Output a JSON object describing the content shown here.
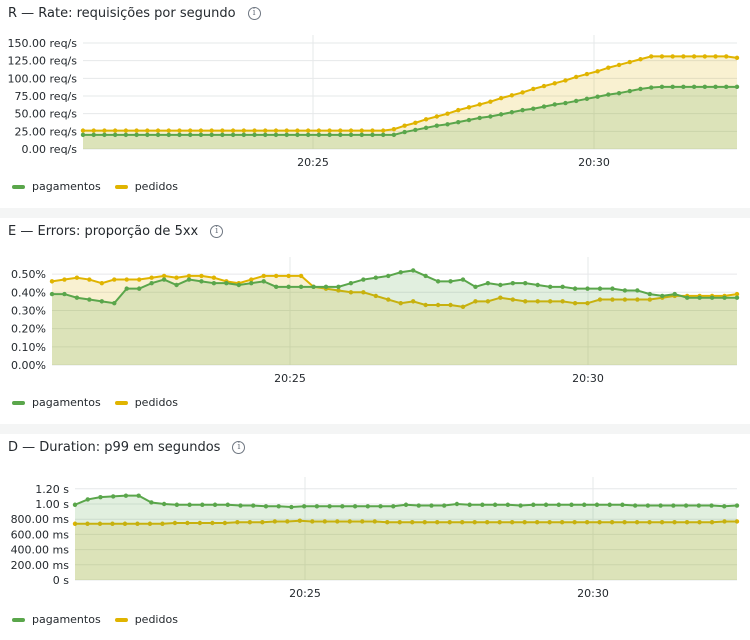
{
  "colors": {
    "pagamentos": "#5aa64b",
    "pedidos": "#e0b400"
  },
  "panels": [
    {
      "title": "R — Rate: requisições por segundo",
      "info_icon": "info-icon"
    },
    {
      "title": "E — Errors: proporção de 5xx",
      "info_icon": "info-icon"
    },
    {
      "title": "D — Duration: p99 em segundos",
      "info_icon": "info-icon"
    }
  ],
  "chart_data": [
    {
      "type": "line",
      "title": "R — Rate: requisições por segundo",
      "x_ticks": [
        "20:25",
        "20:30"
      ],
      "y_ticks": [
        "0.00 req/s",
        "25.00 req/s",
        "50.00 req/s",
        "75.00 req/s",
        "100.00 req/s",
        "125.00 req/s",
        "150.00 req/s"
      ],
      "ylim": [
        0,
        150
      ],
      "fill": "area",
      "legend": "bottom-left",
      "series": [
        {
          "name": "pagamentos",
          "values": [
            20,
            20,
            20,
            20,
            20,
            20,
            20,
            20,
            20,
            20,
            20,
            20,
            20,
            20,
            20,
            20,
            20,
            20,
            20,
            20,
            20,
            20,
            20,
            20,
            20,
            20,
            20,
            20,
            20,
            20,
            24,
            27,
            30,
            33,
            35,
            38,
            41,
            44,
            46,
            49,
            52,
            55,
            57,
            60,
            63,
            65,
            68,
            71,
            74,
            77,
            79,
            82,
            85,
            87,
            88,
            88,
            88,
            88,
            88,
            88,
            88,
            88
          ]
        },
        {
          "name": "pedidos",
          "values": [
            26,
            26,
            26,
            26,
            26,
            26,
            26,
            26,
            26,
            26,
            26,
            26,
            26,
            26,
            26,
            26,
            26,
            26,
            26,
            26,
            26,
            26,
            26,
            26,
            26,
            26,
            26,
            26,
            26,
            28,
            33,
            37,
            42,
            46,
            50,
            55,
            59,
            63,
            67,
            72,
            76,
            80,
            85,
            89,
            93,
            97,
            102,
            106,
            110,
            115,
            119,
            123,
            127,
            131,
            131,
            131,
            131,
            131,
            131,
            131,
            131,
            129
          ]
        }
      ]
    },
    {
      "type": "line",
      "title": "E — Errors: proporção de 5xx",
      "x_ticks": [
        "20:25",
        "20:30"
      ],
      "y_ticks": [
        "0.00%",
        "0.10%",
        "0.20%",
        "0.30%",
        "0.40%",
        "0.50%"
      ],
      "ylim": [
        0,
        0.55
      ],
      "fill": "area",
      "legend": "bottom-left",
      "series": [
        {
          "name": "pagamentos",
          "values": [
            0.39,
            0.39,
            0.37,
            0.36,
            0.35,
            0.34,
            0.42,
            0.42,
            0.45,
            0.47,
            0.44,
            0.47,
            0.46,
            0.45,
            0.45,
            0.44,
            0.45,
            0.46,
            0.43,
            0.43,
            0.43,
            0.43,
            0.43,
            0.43,
            0.45,
            0.47,
            0.48,
            0.49,
            0.51,
            0.52,
            0.49,
            0.46,
            0.46,
            0.47,
            0.43,
            0.45,
            0.44,
            0.45,
            0.45,
            0.44,
            0.43,
            0.43,
            0.42,
            0.42,
            0.42,
            0.42,
            0.41,
            0.41,
            0.39,
            0.38,
            0.39,
            0.37,
            0.37,
            0.37,
            0.37,
            0.37
          ]
        },
        {
          "name": "pedidos",
          "values": [
            0.46,
            0.47,
            0.48,
            0.47,
            0.45,
            0.47,
            0.47,
            0.47,
            0.48,
            0.49,
            0.48,
            0.49,
            0.49,
            0.48,
            0.46,
            0.45,
            0.47,
            0.49,
            0.49,
            0.49,
            0.49,
            0.43,
            0.42,
            0.41,
            0.4,
            0.4,
            0.38,
            0.36,
            0.34,
            0.35,
            0.33,
            0.33,
            0.33,
            0.32,
            0.35,
            0.35,
            0.37,
            0.36,
            0.35,
            0.35,
            0.35,
            0.35,
            0.34,
            0.34,
            0.36,
            0.36,
            0.36,
            0.36,
            0.36,
            0.37,
            0.38,
            0.38,
            0.38,
            0.38,
            0.38,
            0.39
          ]
        }
      ]
    },
    {
      "type": "line",
      "title": "D — Duration: p99 em segundos",
      "x_ticks": [
        "20:25",
        "20:30"
      ],
      "y_ticks": [
        "0 s",
        "200.00 ms",
        "400.00 ms",
        "600.00 ms",
        "800.00 ms",
        "1.00 s",
        "1.20 s"
      ],
      "ylim": [
        0,
        1.25
      ],
      "fill": "area",
      "legend": "bottom-left",
      "series": [
        {
          "name": "pagamentos",
          "values": [
            0.99,
            1.06,
            1.09,
            1.1,
            1.11,
            1.11,
            1.02,
            1.0,
            0.99,
            0.99,
            0.99,
            0.99,
            0.99,
            0.98,
            0.98,
            0.97,
            0.97,
            0.96,
            0.97,
            0.97,
            0.97,
            0.97,
            0.97,
            0.97,
            0.97,
            0.97,
            0.99,
            0.98,
            0.98,
            0.98,
            1.0,
            0.99,
            0.99,
            0.99,
            0.99,
            0.98,
            0.99,
            0.99,
            0.99,
            0.99,
            0.99,
            0.99,
            0.99,
            0.99,
            0.98,
            0.98,
            0.98,
            0.98,
            0.98,
            0.98,
            0.98,
            0.97,
            0.98
          ]
        },
        {
          "name": "pedidos",
          "values": [
            0.74,
            0.74,
            0.74,
            0.74,
            0.74,
            0.74,
            0.74,
            0.74,
            0.75,
            0.75,
            0.75,
            0.75,
            0.75,
            0.76,
            0.76,
            0.76,
            0.77,
            0.77,
            0.78,
            0.77,
            0.77,
            0.77,
            0.77,
            0.77,
            0.77,
            0.76,
            0.76,
            0.76,
            0.76,
            0.76,
            0.76,
            0.76,
            0.76,
            0.76,
            0.76,
            0.76,
            0.76,
            0.76,
            0.76,
            0.76,
            0.76,
            0.76,
            0.76,
            0.76,
            0.76,
            0.76,
            0.76,
            0.76,
            0.76,
            0.76,
            0.76,
            0.76,
            0.77,
            0.77
          ]
        }
      ]
    }
  ]
}
